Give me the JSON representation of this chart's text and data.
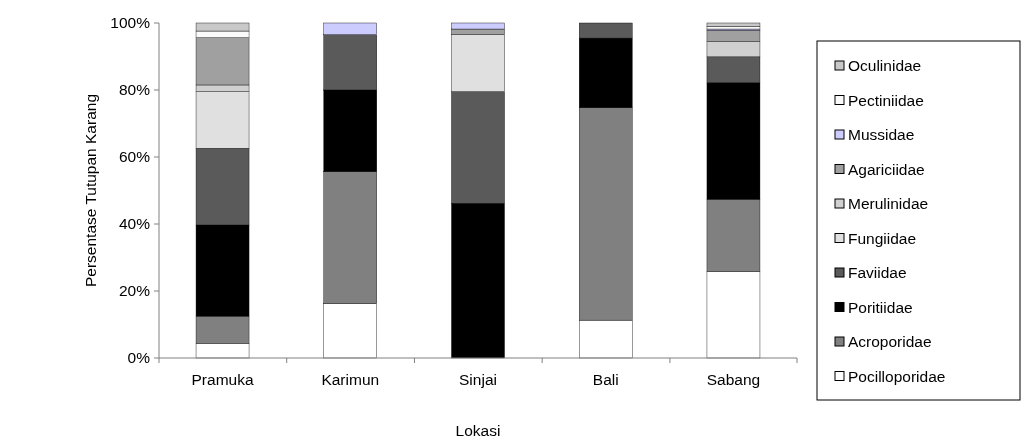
{
  "chart_data": {
    "type": "bar",
    "stacked": true,
    "xlabel": "Lokasi",
    "ylabel": "Persentase Tutupan Karang",
    "categories": [
      "Pramuka",
      "Karimun",
      "Sinjai",
      "Bali",
      "Sabang"
    ],
    "ylim": [
      0,
      100
    ],
    "yticks": [
      {
        "value": 0,
        "label": "0%"
      },
      {
        "value": 20,
        "label": "20%"
      },
      {
        "value": 40,
        "label": "40%"
      },
      {
        "value": 60,
        "label": "60%"
      },
      {
        "value": 80,
        "label": "80%"
      },
      {
        "value": 100,
        "label": "100%"
      }
    ],
    "grid": false,
    "legend": "right",
    "series": [
      {
        "name": "Pocilloporidae",
        "color": "#ffffff",
        "values": [
          4.4,
          16.2,
          0,
          11.3,
          25.8
        ]
      },
      {
        "name": "Acroporidae",
        "color": "#808080",
        "values": [
          8.1,
          39.4,
          0,
          63.4,
          21.6
        ]
      },
      {
        "name": "Poritiidae",
        "color": "#000000",
        "values": [
          27.2,
          24.4,
          46.2,
          20.8,
          34.8
        ]
      },
      {
        "name": "Faviidae",
        "color": "#5a5a5a",
        "values": [
          22.9,
          16.5,
          33.3,
          4.5,
          7.7
        ]
      },
      {
        "name": "Fungiidae",
        "color": "#e0e0e0",
        "values": [
          16.9,
          0,
          17,
          0,
          0
        ]
      },
      {
        "name": "Merulinidae",
        "color": "#d0d0d0",
        "values": [
          2,
          0,
          0,
          0,
          4.5
        ]
      },
      {
        "name": "Agariciidae",
        "color": "#a0a0a0",
        "values": [
          14.1,
          0,
          1.7,
          0,
          3.4
        ]
      },
      {
        "name": "Mussidae",
        "color": "#ccccff",
        "values": [
          0,
          3.5,
          1.8,
          0,
          0.4
        ]
      },
      {
        "name": "Pectiniidae",
        "color": "#fafafa",
        "values": [
          2,
          0,
          0,
          0,
          0.8
        ]
      },
      {
        "name": "Oculinidae",
        "color": "#c8c8c8",
        "values": [
          2.4,
          0,
          0,
          0,
          1
        ]
      }
    ]
  }
}
